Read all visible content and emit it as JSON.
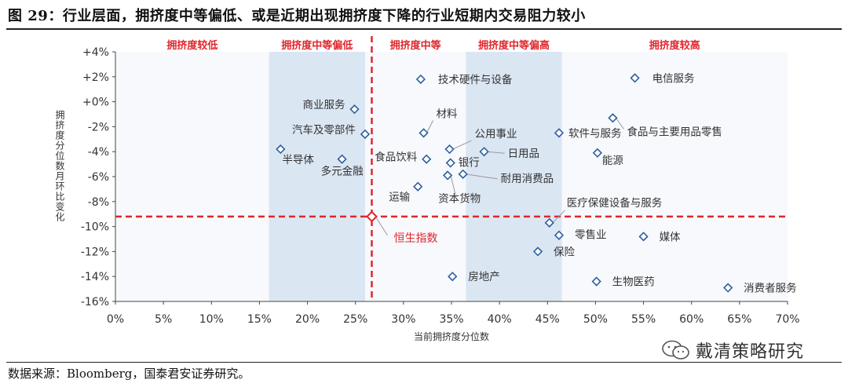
{
  "title": "图 29：行业层面，拥挤度中等偏低、或是近期出现拥挤度下降的行业短期内交易阻力较小",
  "source": "数据来源：Bloomberg，国泰君安证券研究。",
  "brand": "戴清策略研究",
  "chart_data": {
    "type": "scatter",
    "xlabel": "当前拥挤度分位数",
    "ylabel": "拥挤度分位数月环比变化",
    "xlim": [
      0,
      70
    ],
    "ylim": [
      -16,
      4
    ],
    "x_ticks": [
      "0%",
      "5%",
      "10%",
      "15%",
      "20%",
      "25%",
      "30%",
      "35%",
      "40%",
      "45%",
      "50%",
      "55%",
      "60%",
      "65%",
      "70%"
    ],
    "y_ticks": [
      "+4%",
      "+2%",
      "+0%",
      "-2%",
      "-4%",
      "-6%",
      "-8%",
      "-10%",
      "-12%",
      "-14%",
      "-16%"
    ],
    "zones": [
      {
        "label": "拥挤度较低",
        "x_range": [
          0,
          16
        ],
        "shaded": false
      },
      {
        "label": "拥挤度中等偏低",
        "x_range": [
          16,
          26
        ],
        "shaded": true
      },
      {
        "label": "拥挤度中等",
        "x_range": [
          26,
          36.5
        ],
        "shaded": false
      },
      {
        "label": "拥挤度中等偏高",
        "x_range": [
          36.5,
          46.5
        ],
        "shaded": true
      },
      {
        "label": "拥挤度较高",
        "x_range": [
          46.5,
          70
        ],
        "shaded": false
      }
    ],
    "reference": {
      "label": "恒生指数",
      "x": 26.7,
      "y": -9.2
    },
    "points": [
      {
        "name": "电信服务",
        "x": 54.1,
        "y": 1.9
      },
      {
        "name": "技术硬件与设备",
        "x": 31.8,
        "y": 1.8
      },
      {
        "name": "商业服务",
        "x": 24.9,
        "y": -0.6
      },
      {
        "name": "食品与主要用品零售",
        "x": 51.8,
        "y": -1.3
      },
      {
        "name": "汽车及零部件",
        "x": 26.0,
        "y": -2.6
      },
      {
        "name": "材料",
        "x": 32.1,
        "y": -2.5
      },
      {
        "name": "公用事业",
        "x": 34.8,
        "y": -3.8
      },
      {
        "name": "软件与服务",
        "x": 46.2,
        "y": -2.5
      },
      {
        "name": "食品饮料",
        "x": 32.4,
        "y": -4.6
      },
      {
        "name": "日用品",
        "x": 38.4,
        "y": -4.0
      },
      {
        "name": "银行",
        "x": 34.9,
        "y": -4.9
      },
      {
        "name": "能源",
        "x": 50.2,
        "y": -4.1
      },
      {
        "name": "半导体",
        "x": 17.2,
        "y": -3.8
      },
      {
        "name": "多元金融",
        "x": 23.6,
        "y": -4.6
      },
      {
        "name": "耐用消费品",
        "x": 36.2,
        "y": -5.8
      },
      {
        "name": "资本货物",
        "x": 34.6,
        "y": -5.9
      },
      {
        "name": "运输",
        "x": 31.5,
        "y": -6.8
      },
      {
        "name": "医疗保健设备与服务",
        "x": 45.2,
        "y": -9.7
      },
      {
        "name": "零售业",
        "x": 46.2,
        "y": -10.7
      },
      {
        "name": "媒体",
        "x": 55.0,
        "y": -10.8
      },
      {
        "name": "保险",
        "x": 44.0,
        "y": -12.0
      },
      {
        "name": "房地产",
        "x": 35.1,
        "y": -14.0
      },
      {
        "name": "生物医药",
        "x": 50.1,
        "y": -14.4
      },
      {
        "name": "消费者服务",
        "x": 63.8,
        "y": -14.9
      }
    ],
    "colors": {
      "marker": "#2e5f9e",
      "zone_shade": "#dbe6f3",
      "plot_bg": "#f7f9fd",
      "accent": "#e0262c",
      "label": "#333333"
    }
  }
}
